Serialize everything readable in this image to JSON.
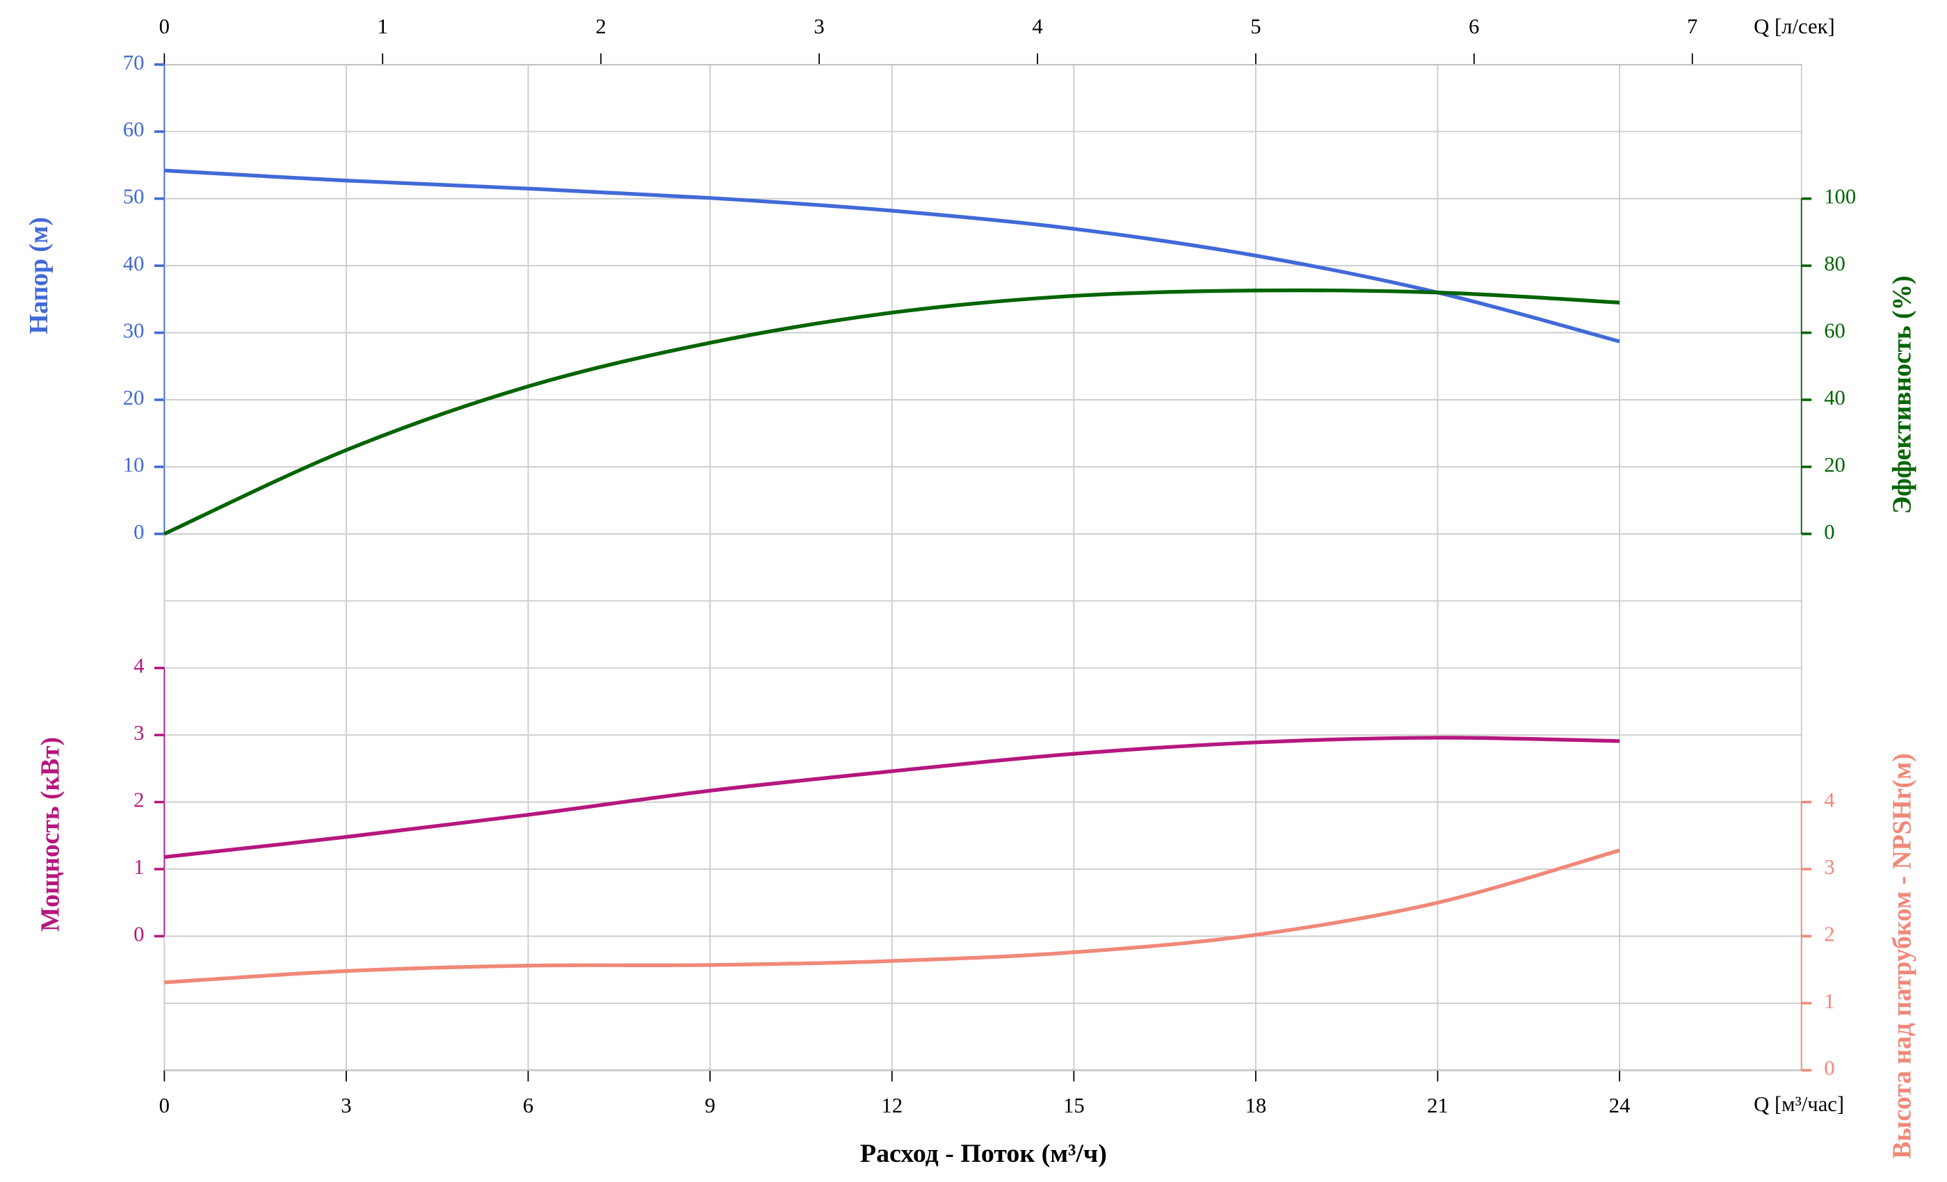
{
  "chart_data": {
    "type": "line",
    "xlabel": "Расход - Поток (м³/ч)",
    "x_unit_label": "Q [м³/час]",
    "x2_unit_label": "Q [л/сек]",
    "x": [
      0,
      3,
      6,
      9,
      12,
      15,
      18,
      21,
      24
    ],
    "xlim": [
      0,
      27
    ],
    "xticks": [
      0,
      3,
      6,
      9,
      12,
      15,
      18,
      21,
      24
    ],
    "x2lim": [
      0,
      7.5
    ],
    "x2ticks": [
      0,
      1,
      2,
      3,
      4,
      5,
      6,
      7
    ],
    "ylabel": "Напор (м)",
    "ylim": [
      0,
      70
    ],
    "yticks": [
      0,
      10,
      20,
      30,
      40,
      50,
      60,
      70
    ],
    "y2label": "Эффективность (%)",
    "y2lim": [
      0,
      100
    ],
    "y2ticks": [
      0,
      20,
      40,
      60,
      80,
      100
    ],
    "y3label": "Мощность (кВт)",
    "y3lim": [
      0,
      4
    ],
    "y3ticks": [
      0,
      1,
      2,
      3,
      4
    ],
    "y4label": "Высота над патрубком - NPSHr(м)",
    "y4lim": [
      0,
      4
    ],
    "y4ticks": [
      0,
      1,
      2,
      3,
      4
    ],
    "grid": true,
    "series": [
      {
        "name": "Напор",
        "color": "#4169d8",
        "axis": "y",
        "values": [
          54.2,
          52.7,
          51.5,
          50.1,
          48.2,
          45.5,
          41.5,
          36,
          28.7
        ]
      },
      {
        "name": "Эффективность",
        "color": "#006400",
        "axis": "y2",
        "values": [
          0,
          25,
          44,
          57,
          66,
          71,
          72.6,
          72,
          69
        ]
      },
      {
        "name": "Мощность",
        "color": "#b5177e",
        "axis": "y3",
        "values": [
          1.18,
          1.48,
          1.81,
          2.17,
          2.46,
          2.72,
          2.89,
          2.96,
          2.91
        ]
      },
      {
        "name": "NPSHr",
        "color": "#f08878",
        "axis": "y4",
        "values": [
          1.31,
          1.48,
          1.56,
          1.57,
          1.63,
          1.76,
          2.02,
          2.5,
          3.28
        ]
      }
    ]
  }
}
